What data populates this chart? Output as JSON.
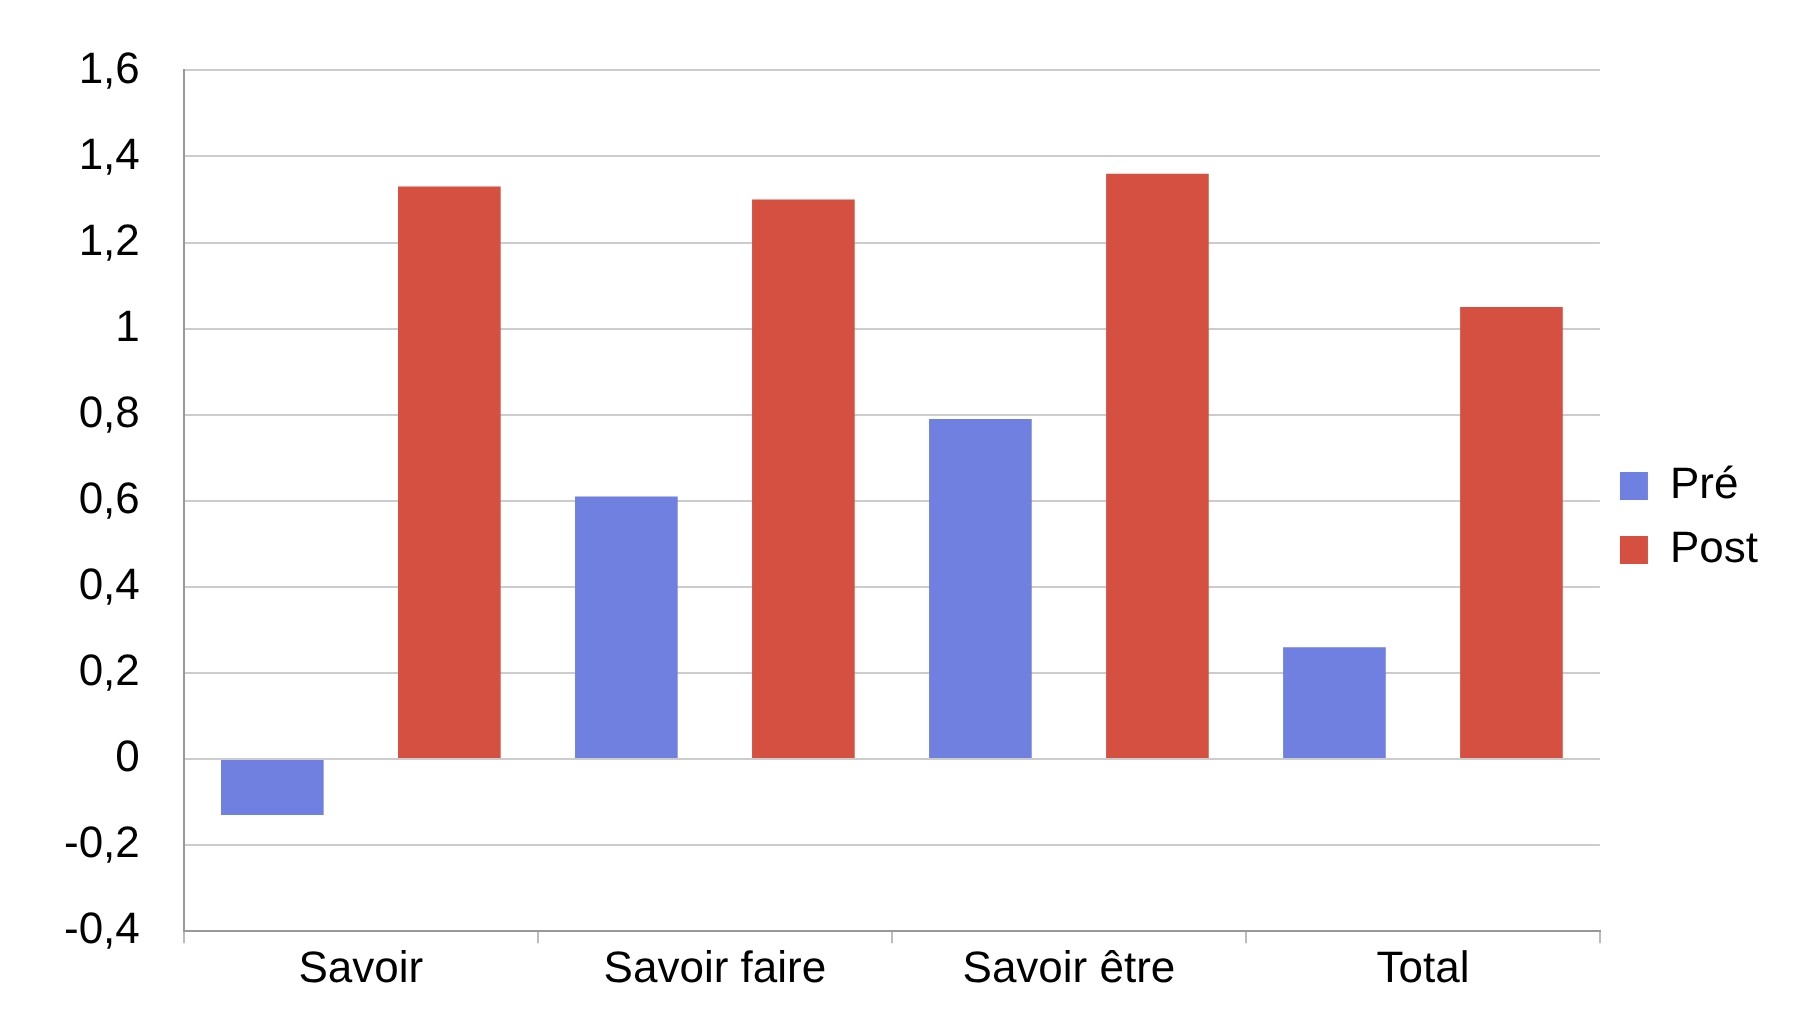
{
  "chart_data": {
    "type": "bar",
    "categories": [
      "Savoir",
      "Savoir faire",
      "Savoir être",
      "Total"
    ],
    "series": [
      {
        "name": "Pré",
        "color": "#7080e0",
        "values": [
          -0.13,
          0.61,
          0.79,
          0.26
        ]
      },
      {
        "name": "Post",
        "color": "#d55040",
        "values": [
          1.33,
          1.3,
          1.36,
          1.05
        ]
      }
    ],
    "ylim": [
      -0.4,
      1.6
    ],
    "yticks": [
      {
        "value": -0.4,
        "label": "-0,4"
      },
      {
        "value": -0.2,
        "label": "-0,2"
      },
      0,
      {
        "value": 0.2,
        "label": "0,2"
      },
      {
        "value": 0.4,
        "label": "0,4"
      },
      {
        "value": 0.6,
        "label": "0,6"
      },
      {
        "value": 0.8,
        "label": "0,8"
      },
      1,
      {
        "value": 1.2,
        "label": "1,2"
      },
      {
        "value": 1.4,
        "label": "1,4"
      },
      {
        "value": 1.6,
        "label": "1,6"
      }
    ],
    "grid": "y",
    "legend": "right"
  }
}
